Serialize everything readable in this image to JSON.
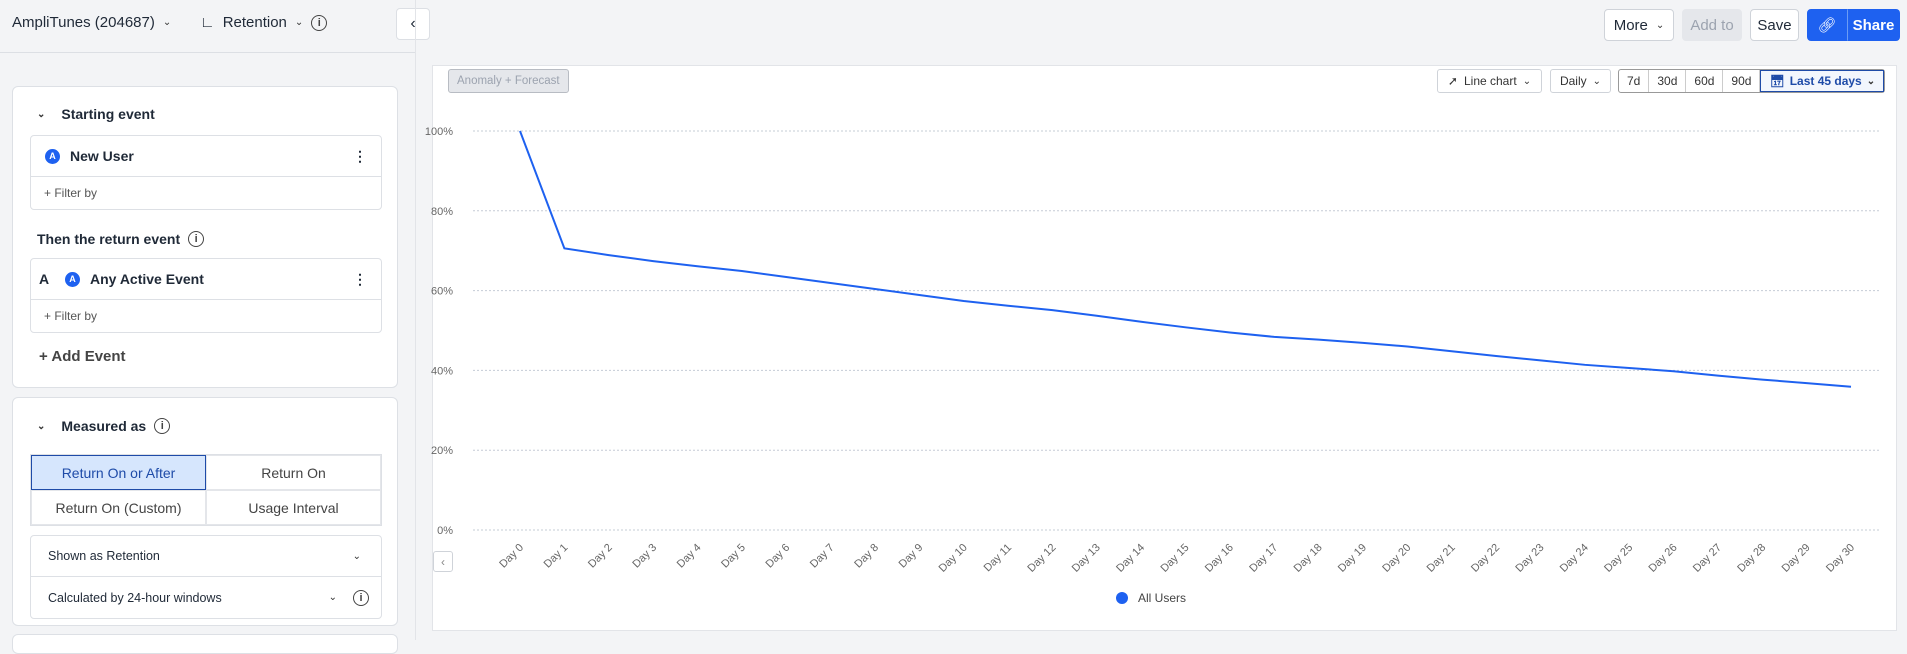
{
  "header": {
    "project": "AmpliTunes (204687)",
    "chart_type": "Retention",
    "buttons": {
      "more": "More",
      "add_to": "Add to",
      "save": "Save",
      "share": "Share"
    }
  },
  "sidebar": {
    "starting_event": {
      "title": "Starting event",
      "event": "New User",
      "filter": "+ Filter by"
    },
    "return_event": {
      "title": "Then the return event",
      "letter": "A",
      "event": "Any Active Event",
      "filter": "+ Filter by",
      "add_event": "+ Add Event"
    },
    "measured_as": {
      "title": "Measured as",
      "options": [
        "Return On or After",
        "Return On",
        "Return On (Custom)",
        "Usage Interval"
      ],
      "selected": "Return On or After",
      "shown_as": "Shown as Retention",
      "calculated_by": "Calculated by 24-hour windows"
    }
  },
  "toolbar": {
    "anomaly": "Anomaly + Forecast",
    "chart_type": "Line chart",
    "interval": "Daily",
    "ranges": [
      "7d",
      "30d",
      "60d",
      "90d"
    ],
    "selected_range": "Last 45 days"
  },
  "chart_data": {
    "type": "line",
    "categories": [
      "Day 0",
      "Day 1",
      "Day 2",
      "Day 3",
      "Day 4",
      "Day 5",
      "Day 6",
      "Day 7",
      "Day 8",
      "Day 9",
      "Day 10",
      "Day 11",
      "Day 12",
      "Day 13",
      "Day 14",
      "Day 15",
      "Day 16",
      "Day 17",
      "Day 18",
      "Day 19",
      "Day 20",
      "Day 21",
      "Day 22",
      "Day 23",
      "Day 24",
      "Day 25",
      "Day 26",
      "Day 27",
      "Day 28",
      "Day 29",
      "Day 30"
    ],
    "series": [
      {
        "name": "All Users",
        "color": "#1e61f0",
        "values": [
          100,
          70.6,
          68.9,
          67.4,
          66.1,
          64.9,
          63.4,
          61.9,
          60.4,
          58.9,
          57.4,
          56.2,
          55.1,
          53.7,
          52.2,
          50.8,
          49.5,
          48.4,
          47.7,
          46.9,
          46.0,
          44.8,
          43.6,
          42.5,
          41.4,
          40.6,
          39.8,
          38.7,
          37.7,
          36.8,
          35.9
        ]
      }
    ],
    "yticks": [
      "0%",
      "20%",
      "40%",
      "60%",
      "80%",
      "100%"
    ],
    "ylim": [
      0,
      100
    ],
    "grid": true,
    "legend": "bottom"
  }
}
